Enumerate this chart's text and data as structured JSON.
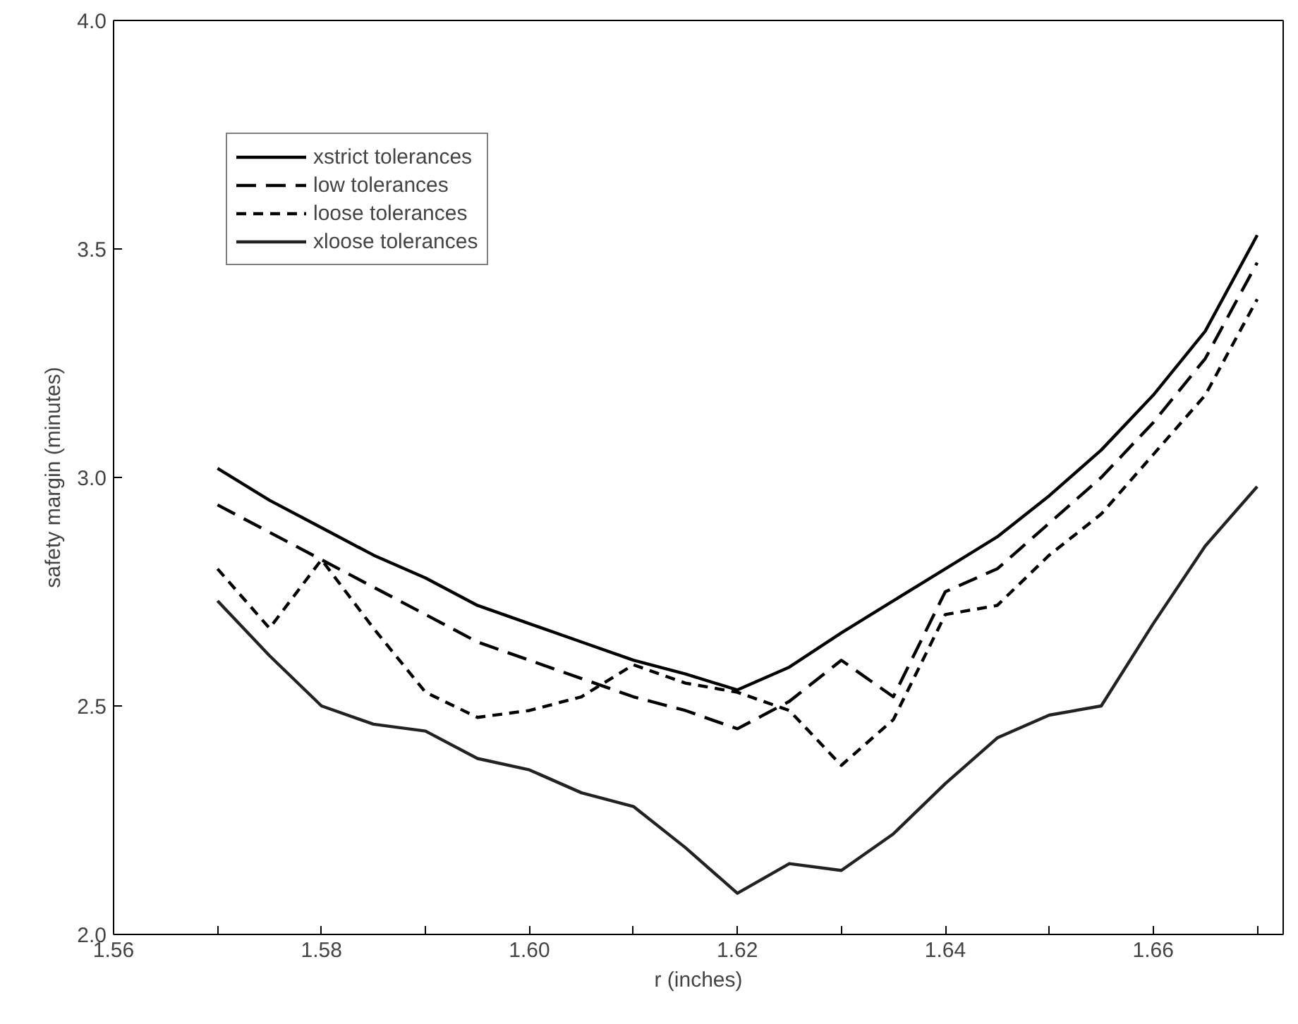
{
  "chart_data": {
    "type": "line",
    "xlabel": "r (inches)",
    "ylabel": "safety margin (minutes)",
    "x": [
      1.57,
      1.575,
      1.58,
      1.585,
      1.59,
      1.595,
      1.6,
      1.605,
      1.61,
      1.615,
      1.62,
      1.625,
      1.63,
      1.635,
      1.64,
      1.645,
      1.65,
      1.655,
      1.66,
      1.665,
      1.67
    ],
    "series": [
      {
        "name": "xstrict tolerances",
        "color": "#000000",
        "line_style": "solid",
        "values": [
          3.02,
          2.95,
          2.89,
          2.83,
          2.78,
          2.72,
          2.68,
          2.64,
          2.6,
          2.57,
          2.535,
          2.585,
          2.66,
          2.73,
          2.8,
          2.87,
          2.96,
          3.06,
          3.18,
          3.32,
          3.53
        ]
      },
      {
        "name": "low tolerances",
        "color": "#000000",
        "line_style": "dashed",
        "values": [
          2.94,
          2.88,
          2.82,
          2.76,
          2.7,
          2.64,
          2.6,
          2.56,
          2.52,
          2.49,
          2.45,
          2.51,
          2.6,
          2.52,
          2.75,
          2.8,
          2.9,
          3.0,
          3.12,
          3.26,
          3.47
        ]
      },
      {
        "name": "loose tolerances",
        "color": "#000000",
        "line_style": "dotted",
        "values": [
          2.8,
          2.67,
          2.82,
          2.67,
          2.53,
          2.475,
          2.49,
          2.52,
          2.59,
          2.55,
          2.53,
          2.49,
          2.37,
          2.47,
          2.7,
          2.72,
          2.83,
          2.92,
          3.05,
          3.18,
          3.39
        ]
      },
      {
        "name": "xloose tolerances",
        "color": "#222222",
        "line_style": "solid",
        "values": [
          2.73,
          2.61,
          2.5,
          2.46,
          2.445,
          2.385,
          2.36,
          2.31,
          2.28,
          2.19,
          2.09,
          2.155,
          2.14,
          2.22,
          2.33,
          2.43,
          2.48,
          2.5,
          2.68,
          2.85,
          2.98
        ]
      }
    ],
    "xlim": [
      1.56,
      1.6725
    ],
    "ylim": [
      2.0,
      4.0
    ],
    "xticks": [
      {
        "value": 1.56,
        "label": "1.56"
      },
      {
        "value": 1.57,
        "label": null
      },
      {
        "value": 1.58,
        "label": "1.58"
      },
      {
        "value": 1.59,
        "label": null
      },
      {
        "value": 1.6,
        "label": "1.60"
      },
      {
        "value": 1.61,
        "label": null
      },
      {
        "value": 1.62,
        "label": "1.62"
      },
      {
        "value": 1.63,
        "label": null
      },
      {
        "value": 1.64,
        "label": "1.64"
      },
      {
        "value": 1.65,
        "label": null
      },
      {
        "value": 1.66,
        "label": "1.66"
      },
      {
        "value": 1.67,
        "label": null
      }
    ],
    "yticks": [
      {
        "value": 2.0,
        "label": "2.0"
      },
      {
        "value": 2.5,
        "label": "2.5"
      },
      {
        "value": 3.0,
        "label": "3.0"
      },
      {
        "value": 3.5,
        "label": "3.5"
      },
      {
        "value": 4.0,
        "label": "4.0"
      }
    ],
    "grid": false,
    "legend": "top left"
  }
}
